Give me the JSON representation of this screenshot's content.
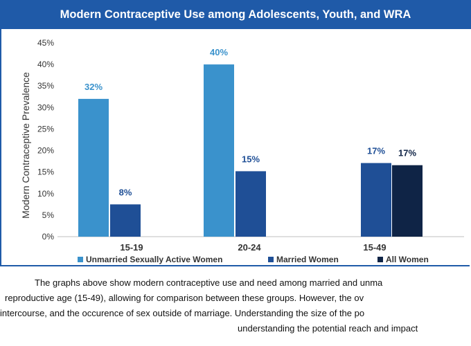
{
  "title": "Modern Contraceptive Use among Adolescents, Youth, and WRA",
  "chart_data": {
    "type": "bar",
    "ylabel": "Modern Contraceptive Prevalence",
    "ylim": [
      0,
      45
    ],
    "yticks": [
      "0%",
      "5%",
      "10%",
      "15%",
      "20%",
      "25%",
      "30%",
      "35%",
      "40%",
      "45%"
    ],
    "categories": [
      "15-19",
      "20-24",
      "15-49"
    ],
    "series": [
      {
        "name": "Unmarried Sexually Active Women",
        "color": "#3a92cc",
        "values": [
          32,
          40,
          null
        ],
        "labels": [
          "32%",
          "40%",
          ""
        ]
      },
      {
        "name": "Married Women",
        "color": "#1f4f96",
        "values": [
          7.5,
          15.2,
          17.1
        ],
        "labels": [
          "8%",
          "15%",
          "17%"
        ]
      },
      {
        "name": "All Women",
        "color": "#0f2446",
        "values": [
          null,
          null,
          16.6
        ],
        "labels": [
          "",
          "",
          "17%"
        ]
      }
    ],
    "legend_position": "bottom"
  },
  "caption": {
    "line1": "The graphs above show modern contraceptive use and need among married and unma",
    "line2": "reproductive age (15-49), allowing for comparison between these groups. However, the ov",
    "line3": "intercourse, and the occurence of sex outside of marriage. Understanding the size of the po",
    "line4": "understanding the potential reach and impact"
  }
}
